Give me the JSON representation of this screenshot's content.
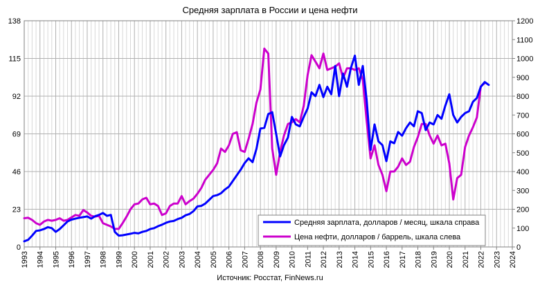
{
  "chart_data": {
    "type": "line",
    "title": "Средняя зарплата в России и цена нефти",
    "source": "Источник: Росстат, FinNews.ru",
    "x_ticks": [
      "1993",
      "1994",
      "1995",
      "1996",
      "1997",
      "1998",
      "1999",
      "2000",
      "2001",
      "2002",
      "2003",
      "2004",
      "2005",
      "2006",
      "2007",
      "2008",
      "2009",
      "2010",
      "2011",
      "2012",
      "2013",
      "2014",
      "2015",
      "2016",
      "2017",
      "2018",
      "2019",
      "2020",
      "2021",
      "2022",
      "2023",
      "2024"
    ],
    "xlim": [
      1993,
      2024
    ],
    "y_left": {
      "ticks": [
        "0",
        "23",
        "46",
        "69",
        "92",
        "115",
        "138"
      ],
      "ylim": [
        0,
        138
      ]
    },
    "y_right": {
      "ticks": [
        "0",
        "100",
        "200",
        "300",
        "400",
        "500",
        "600",
        "700",
        "800",
        "900",
        "1000",
        "1100",
        "1200"
      ],
      "ylim": [
        0,
        1200
      ]
    },
    "grid": true,
    "legend_position": "bottom-right",
    "series": [
      {
        "name": "Средняя зарплата, долларов / месяц, шкала справа",
        "color": "#0000ff",
        "axis": "right",
        "points": [
          [
            1993.0,
            30
          ],
          [
            1993.25,
            38
          ],
          [
            1993.5,
            60
          ],
          [
            1993.75,
            85
          ],
          [
            1994.0,
            88
          ],
          [
            1994.25,
            95
          ],
          [
            1994.5,
            105
          ],
          [
            1994.75,
            100
          ],
          [
            1995.0,
            80
          ],
          [
            1995.25,
            95
          ],
          [
            1995.5,
            115
          ],
          [
            1995.75,
            135
          ],
          [
            1996.0,
            145
          ],
          [
            1996.25,
            150
          ],
          [
            1996.5,
            155
          ],
          [
            1996.75,
            158
          ],
          [
            1997.0,
            162
          ],
          [
            1997.25,
            150
          ],
          [
            1997.5,
            163
          ],
          [
            1997.75,
            170
          ],
          [
            1998.0,
            180
          ],
          [
            1998.25,
            165
          ],
          [
            1998.5,
            170
          ],
          [
            1998.75,
            80
          ],
          [
            1999.0,
            60
          ],
          [
            1999.25,
            62
          ],
          [
            1999.5,
            66
          ],
          [
            1999.75,
            70
          ],
          [
            2000.0,
            75
          ],
          [
            2000.25,
            72
          ],
          [
            2000.5,
            80
          ],
          [
            2000.75,
            85
          ],
          [
            2001.0,
            95
          ],
          [
            2001.25,
            100
          ],
          [
            2001.5,
            110
          ],
          [
            2001.75,
            118
          ],
          [
            2002.0,
            128
          ],
          [
            2002.25,
            135
          ],
          [
            2002.5,
            138
          ],
          [
            2002.75,
            148
          ],
          [
            2003.0,
            155
          ],
          [
            2003.25,
            168
          ],
          [
            2003.5,
            175
          ],
          [
            2003.75,
            190
          ],
          [
            2004.0,
            215
          ],
          [
            2004.25,
            218
          ],
          [
            2004.5,
            230
          ],
          [
            2004.75,
            250
          ],
          [
            2005.0,
            270
          ],
          [
            2005.25,
            275
          ],
          [
            2005.5,
            285
          ],
          [
            2005.75,
            305
          ],
          [
            2006.0,
            320
          ],
          [
            2006.25,
            350
          ],
          [
            2006.5,
            380
          ],
          [
            2006.75,
            410
          ],
          [
            2007.0,
            445
          ],
          [
            2007.25,
            470
          ],
          [
            2007.5,
            450
          ],
          [
            2007.75,
            520
          ],
          [
            2008.0,
            628
          ],
          [
            2008.25,
            632
          ],
          [
            2008.5,
            705
          ],
          [
            2008.75,
            715
          ],
          [
            2009.0,
            600
          ],
          [
            2009.25,
            480
          ],
          [
            2009.5,
            540
          ],
          [
            2009.75,
            580
          ],
          [
            2010.0,
            690
          ],
          [
            2010.25,
            650
          ],
          [
            2010.5,
            640
          ],
          [
            2010.75,
            690
          ],
          [
            2011.0,
            735
          ],
          [
            2011.25,
            820
          ],
          [
            2011.5,
            800
          ],
          [
            2011.75,
            860
          ],
          [
            2012.0,
            795
          ],
          [
            2012.25,
            850
          ],
          [
            2012.5,
            810
          ],
          [
            2012.75,
            960
          ],
          [
            2013.0,
            800
          ],
          [
            2013.25,
            920
          ],
          [
            2013.5,
            850
          ],
          [
            2013.75,
            950
          ],
          [
            2014.0,
            1015
          ],
          [
            2014.25,
            860
          ],
          [
            2014.5,
            960
          ],
          [
            2014.75,
            780
          ],
          [
            2015.0,
            515
          ],
          [
            2015.25,
            650
          ],
          [
            2015.5,
            560
          ],
          [
            2015.75,
            540
          ],
          [
            2016.0,
            455
          ],
          [
            2016.25,
            560
          ],
          [
            2016.5,
            550
          ],
          [
            2016.75,
            610
          ],
          [
            2017.0,
            590
          ],
          [
            2017.25,
            630
          ],
          [
            2017.5,
            660
          ],
          [
            2017.75,
            640
          ],
          [
            2018.0,
            720
          ],
          [
            2018.25,
            710
          ],
          [
            2018.5,
            620
          ],
          [
            2018.75,
            660
          ],
          [
            2019.0,
            650
          ],
          [
            2019.25,
            700
          ],
          [
            2019.5,
            680
          ],
          [
            2019.75,
            750
          ],
          [
            2020.0,
            810
          ],
          [
            2020.25,
            700
          ],
          [
            2020.5,
            660
          ],
          [
            2020.75,
            690
          ],
          [
            2021.0,
            710
          ],
          [
            2021.25,
            720
          ],
          [
            2021.5,
            770
          ],
          [
            2021.75,
            790
          ],
          [
            2022.0,
            850
          ],
          [
            2022.25,
            875
          ],
          [
            2022.5,
            860
          ]
        ]
      },
      {
        "name": "Цена нефти, долларов / баррель, шкала слева",
        "color": "#cc00cc",
        "axis": "left",
        "points": [
          [
            1993.0,
            17.5
          ],
          [
            1993.25,
            17.8
          ],
          [
            1993.5,
            16.5
          ],
          [
            1993.75,
            14.5
          ],
          [
            1994.0,
            13.5
          ],
          [
            1994.25,
            15.5
          ],
          [
            1994.5,
            16.5
          ],
          [
            1994.75,
            16.0
          ],
          [
            1995.0,
            16.5
          ],
          [
            1995.25,
            17.5
          ],
          [
            1995.5,
            16.0
          ],
          [
            1995.75,
            16.5
          ],
          [
            1996.0,
            18.0
          ],
          [
            1996.25,
            19.5
          ],
          [
            1996.5,
            19.0
          ],
          [
            1996.75,
            22.5
          ],
          [
            1997.0,
            21.0
          ],
          [
            1997.25,
            19.0
          ],
          [
            1997.5,
            18.5
          ],
          [
            1997.75,
            19.0
          ],
          [
            1998.0,
            14.5
          ],
          [
            1998.25,
            13.5
          ],
          [
            1998.5,
            12.5
          ],
          [
            1998.75,
            11.0
          ],
          [
            1999.0,
            11.0
          ],
          [
            1999.25,
            14.5
          ],
          [
            1999.5,
            18.5
          ],
          [
            1999.75,
            23.0
          ],
          [
            2000.0,
            26.0
          ],
          [
            2000.25,
            26.5
          ],
          [
            2000.5,
            29.0
          ],
          [
            2000.75,
            30.0
          ],
          [
            2001.0,
            26.0
          ],
          [
            2001.25,
            26.5
          ],
          [
            2001.5,
            25.0
          ],
          [
            2001.75,
            19.5
          ],
          [
            2002.0,
            20.5
          ],
          [
            2002.25,
            25.0
          ],
          [
            2002.5,
            26.5
          ],
          [
            2002.75,
            26.5
          ],
          [
            2003.0,
            31.0
          ],
          [
            2003.25,
            26.0
          ],
          [
            2003.5,
            28.0
          ],
          [
            2003.75,
            29.5
          ],
          [
            2004.0,
            32.5
          ],
          [
            2004.25,
            36.0
          ],
          [
            2004.5,
            41.0
          ],
          [
            2004.75,
            44.0
          ],
          [
            2005.0,
            47.0
          ],
          [
            2005.25,
            51.0
          ],
          [
            2005.5,
            60.0
          ],
          [
            2005.75,
            58.0
          ],
          [
            2006.0,
            62.0
          ],
          [
            2006.25,
            69.0
          ],
          [
            2006.5,
            70.0
          ],
          [
            2006.75,
            59.0
          ],
          [
            2007.0,
            58.0
          ],
          [
            2007.25,
            66.0
          ],
          [
            2007.5,
            75.0
          ],
          [
            2007.75,
            88.0
          ],
          [
            2008.0,
            96.0
          ],
          [
            2008.25,
            121.0
          ],
          [
            2008.5,
            118.0
          ],
          [
            2008.75,
            60.0
          ],
          [
            2009.0,
            44.0
          ],
          [
            2009.25,
            58.0
          ],
          [
            2009.5,
            68.0
          ],
          [
            2009.75,
            75.0
          ],
          [
            2010.0,
            76.0
          ],
          [
            2010.25,
            78.0
          ],
          [
            2010.5,
            76.0
          ],
          [
            2010.75,
            86.0
          ],
          [
            2011.0,
            105.0
          ],
          [
            2011.25,
            117.0
          ],
          [
            2011.5,
            113.0
          ],
          [
            2011.75,
            109.0
          ],
          [
            2012.0,
            118.0
          ],
          [
            2012.25,
            108.0
          ],
          [
            2012.5,
            109.0
          ],
          [
            2012.75,
            110.0
          ],
          [
            2013.0,
            112.0
          ],
          [
            2013.25,
            103.0
          ],
          [
            2013.5,
            109.0
          ],
          [
            2013.75,
            109.0
          ],
          [
            2014.0,
            108.0
          ],
          [
            2014.25,
            109.0
          ],
          [
            2014.5,
            102.0
          ],
          [
            2014.75,
            77.0
          ],
          [
            2015.0,
            54.0
          ],
          [
            2015.25,
            62.0
          ],
          [
            2015.5,
            50.0
          ],
          [
            2015.75,
            44.0
          ],
          [
            2016.0,
            34.0
          ],
          [
            2016.25,
            46.0
          ],
          [
            2016.5,
            46.0
          ],
          [
            2016.75,
            49.0
          ],
          [
            2017.0,
            54.0
          ],
          [
            2017.25,
            50.0
          ],
          [
            2017.5,
            52.0
          ],
          [
            2017.75,
            61.0
          ],
          [
            2018.0,
            67.0
          ],
          [
            2018.25,
            75.0
          ],
          [
            2018.5,
            75.0
          ],
          [
            2018.75,
            68.0
          ],
          [
            2019.0,
            63.0
          ],
          [
            2019.25,
            68.0
          ],
          [
            2019.5,
            62.0
          ],
          [
            2019.75,
            63.0
          ],
          [
            2020.0,
            51.0
          ],
          [
            2020.25,
            29.0
          ],
          [
            2020.5,
            42.0
          ],
          [
            2020.75,
            44.0
          ],
          [
            2021.0,
            61.0
          ],
          [
            2021.25,
            68.0
          ],
          [
            2021.5,
            73.0
          ],
          [
            2021.75,
            79.0
          ],
          [
            2022.0,
            98.0
          ],
          [
            2022.25,
            100.0
          ]
        ]
      }
    ]
  }
}
